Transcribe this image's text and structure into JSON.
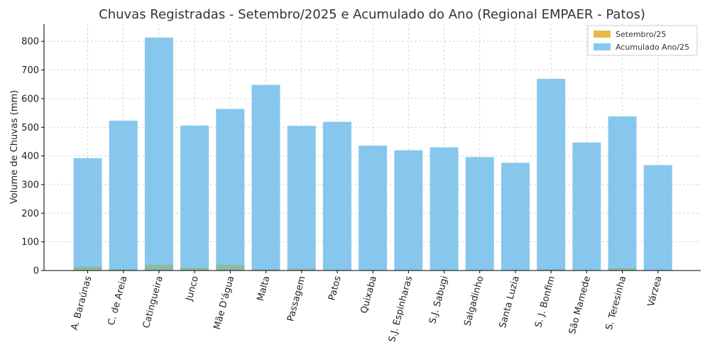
{
  "chart_data": {
    "type": "bar",
    "title": "Chuvas Registradas - Setembro/2025 e Acumulado do Ano (Regional EMPAER - Patos)",
    "xlabel": "",
    "ylabel": "Volume de Chuvas (mm)",
    "ylim": [
      0,
      860
    ],
    "yticks": [
      0,
      100,
      200,
      300,
      400,
      500,
      600,
      700,
      800
    ],
    "grid": true,
    "legend_position": "top-right",
    "categories": [
      "A. Baraúnas",
      "C. de Areia",
      "Catingueira",
      "Junco",
      "Mãe D'água",
      "Malta",
      "Passagem",
      "Patos",
      "Quixaba",
      "S.J. Espinharas",
      "S.J. Sabugi",
      "Salgadinho",
      "Santa Luzia",
      "S. J. Bonfim",
      "São Mamede",
      "S. Teresinha",
      "Várzea"
    ],
    "series": [
      {
        "name": "Setembro/25",
        "color": "#e8b84a",
        "values": [
          14,
          4,
          20,
          10,
          20,
          4,
          6,
          2,
          2,
          2,
          2,
          2,
          2,
          4,
          2,
          8,
          2
        ]
      },
      {
        "name": "Acumulado Ano/25",
        "color": "#87c7ee",
        "values": [
          392,
          523,
          813,
          506,
          564,
          648,
          505,
          519,
          436,
          420,
          430,
          396,
          376,
          669,
          447,
          538,
          368
        ]
      }
    ]
  }
}
